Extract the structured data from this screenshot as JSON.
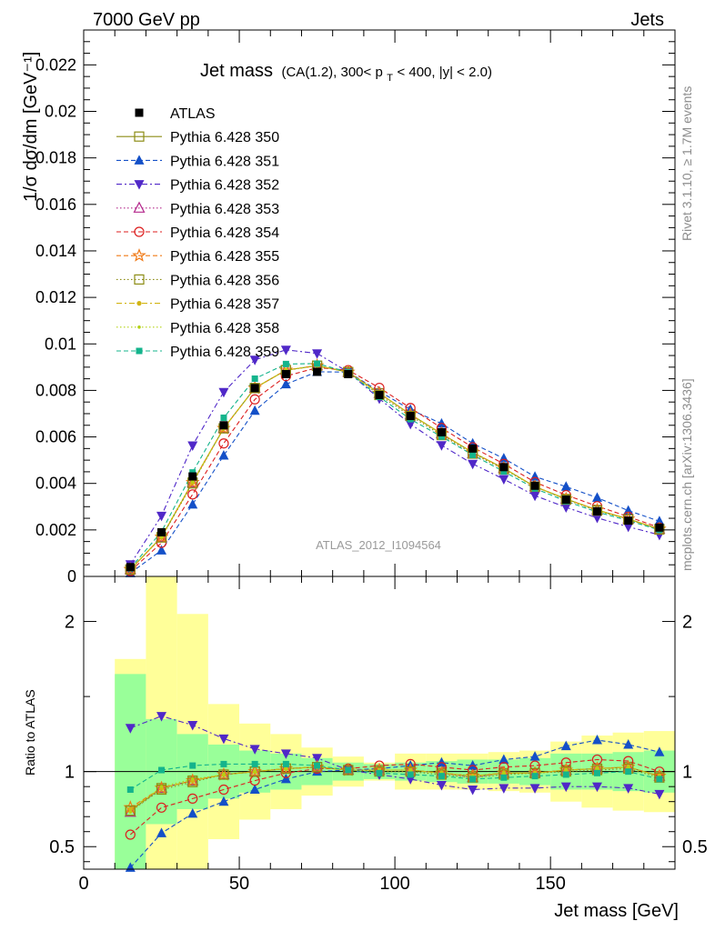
{
  "header": {
    "left": "7000 GeV pp",
    "right": "Jets"
  },
  "title": {
    "main": "Jet mass",
    "details_a": "(CA(1.2), 300< p",
    "details_sub": "T",
    "details_b": " < 400, |y| < 2.0)"
  },
  "side_text": {
    "rivet": "Rivet 3.1.10, ≥ 1.7M events",
    "mcplots": "mcplots.cern.ch [arXiv:1306.3436]"
  },
  "watermark": "ATLAS_2012_I1094564",
  "axes": {
    "xlabel": "Jet mass [GeV]",
    "ylabel_main": "1/σ dσ/dm [GeV⁻¹]",
    "ylabel_ratio": "Ratio to ATLAS"
  },
  "chart_data": {
    "type": "line",
    "x": [
      15,
      25,
      35,
      45,
      55,
      65,
      75,
      85,
      95,
      105,
      115,
      125,
      135,
      145,
      155,
      165,
      175,
      185
    ],
    "xlim": [
      0,
      190
    ],
    "xticks": [
      0,
      50,
      100,
      150
    ],
    "ylim_main": [
      0,
      0.0235
    ],
    "yticks_main": [
      0,
      0.002,
      0.004,
      0.006,
      0.008,
      0.01,
      0.012,
      0.014,
      0.016,
      0.018,
      0.02,
      0.022
    ],
    "ytick_labels_main": [
      "0",
      "0.002",
      "0.004",
      "0.006",
      "0.008",
      "0.01",
      "0.012",
      "0.014",
      "0.016",
      "0.018",
      "0.02",
      "0.022"
    ],
    "ylim_ratio": [
      0.35,
      2.3
    ],
    "yticks_ratio": [
      0.5,
      1,
      2
    ],
    "ytick_labels_ratio": [
      "0.5",
      "1",
      "2"
    ],
    "data": {
      "name": "ATLAS",
      "values": [
        0.0004,
        0.0019,
        0.0043,
        0.0065,
        0.0081,
        0.0087,
        0.0088,
        0.0087,
        0.0078,
        0.0069,
        0.0062,
        0.0055,
        0.0047,
        0.0039,
        0.0033,
        0.0028,
        0.0024,
        0.0021
      ],
      "band_inner": [
        0.65,
        0.35,
        0.25,
        0.18,
        0.14,
        0.12,
        0.09,
        0.06,
        0.05,
        0.06,
        0.07,
        0.08,
        0.08,
        0.09,
        0.12,
        0.12,
        0.13,
        0.14
      ],
      "band_outer": [
        0.75,
        1.3,
        1.05,
        0.45,
        0.32,
        0.25,
        0.16,
        0.1,
        0.06,
        0.12,
        0.12,
        0.12,
        0.13,
        0.14,
        0.2,
        0.24,
        0.26,
        0.27
      ]
    },
    "series": [
      {
        "name": "Pythia 6.428 350",
        "color": "#8c8c14",
        "dash": "",
        "marker": "square-open",
        "ratio": [
          0.74,
          0.89,
          0.94,
          0.98,
          1.0,
          1.02,
          1.03,
          1.01,
          1.01,
          1.01,
          0.99,
          0.97,
          0.99,
          0.99,
          1.01,
          1.02,
          1.03,
          0.97
        ]
      },
      {
        "name": "Pythia 6.428 351",
        "color": "#1450c8",
        "dash": "5,3",
        "marker": "triangle-up",
        "ratio": [
          0.36,
          0.59,
          0.72,
          0.8,
          0.88,
          0.95,
          1.0,
          1.01,
          1.02,
          1.04,
          1.06,
          1.04,
          1.08,
          1.1,
          1.17,
          1.21,
          1.18,
          1.13
        ]
      },
      {
        "name": "Pythia 6.428 352",
        "color": "#5028c8",
        "dash": "6,3,2,3",
        "marker": "triangle-down",
        "ratio": [
          1.29,
          1.37,
          1.31,
          1.22,
          1.15,
          1.12,
          1.09,
          1.01,
          0.98,
          0.95,
          0.91,
          0.88,
          0.89,
          0.89,
          0.9,
          0.9,
          0.89,
          0.85
        ]
      },
      {
        "name": "Pythia 6.428 353",
        "color": "#b4288c",
        "dash": "1.5,2.5",
        "marker": "triangle-open",
        "ratio": [
          0.73,
          0.89,
          0.94,
          0.98,
          1.0,
          1.02,
          1.03,
          1.01,
          1.01,
          1.01,
          0.99,
          0.96,
          0.99,
          0.99,
          1.01,
          1.02,
          1.03,
          0.97
        ]
      },
      {
        "name": "Pythia 6.428 354",
        "color": "#dc1e1e",
        "dash": "5,3",
        "marker": "circle-open",
        "ratio": [
          0.58,
          0.76,
          0.82,
          0.88,
          0.94,
          0.99,
          1.02,
          1.02,
          1.04,
          1.05,
          1.03,
          1.01,
          1.03,
          1.04,
          1.06,
          1.08,
          1.07,
          1.0
        ]
      },
      {
        "name": "Pythia 6.428 355",
        "color": "#f07814",
        "dash": "5,3",
        "marker": "star-open",
        "ratio": [
          0.76,
          0.89,
          0.94,
          0.98,
          1.0,
          1.02,
          1.03,
          1.01,
          1.01,
          1.01,
          0.99,
          0.97,
          0.99,
          0.99,
          1.01,
          1.02,
          1.03,
          0.97
        ]
      },
      {
        "name": "Pythia 6.428 356",
        "color": "#8c8c14",
        "dash": "1.5,2.5",
        "marker": "square-open",
        "ratio": [
          0.74,
          0.88,
          0.93,
          0.98,
          1.0,
          1.02,
          1.03,
          1.01,
          1.0,
          1.0,
          0.98,
          0.96,
          0.98,
          0.99,
          1.0,
          1.01,
          1.02,
          0.96
        ]
      },
      {
        "name": "Pythia 6.428 357",
        "color": "#d2b414",
        "dash": "6,3,2,3",
        "marker": "dot",
        "ratio": [
          0.75,
          0.89,
          0.94,
          0.98,
          1.0,
          1.02,
          1.03,
          1.01,
          1.01,
          1.01,
          0.99,
          0.97,
          0.99,
          0.99,
          1.01,
          1.02,
          1.03,
          0.97
        ]
      },
      {
        "name": "Pythia 6.428 358",
        "color": "#b4d214",
        "dash": "1.5,2.5",
        "marker": "dot-small",
        "ratio": [
          0.73,
          0.9,
          0.95,
          0.98,
          1.0,
          1.02,
          1.03,
          1.01,
          1.01,
          1.01,
          0.99,
          0.97,
          0.99,
          0.99,
          1.01,
          1.02,
          1.03,
          0.97
        ]
      },
      {
        "name": "Pythia 6.428 359",
        "color": "#14b48c",
        "dash": "5,3",
        "marker": "square-filled",
        "ratio": [
          0.88,
          1.01,
          1.04,
          1.05,
          1.05,
          1.05,
          1.04,
          1.01,
          0.99,
          0.98,
          0.97,
          0.95,
          0.96,
          0.97,
          0.98,
          0.99,
          1.0,
          0.95
        ]
      }
    ]
  }
}
